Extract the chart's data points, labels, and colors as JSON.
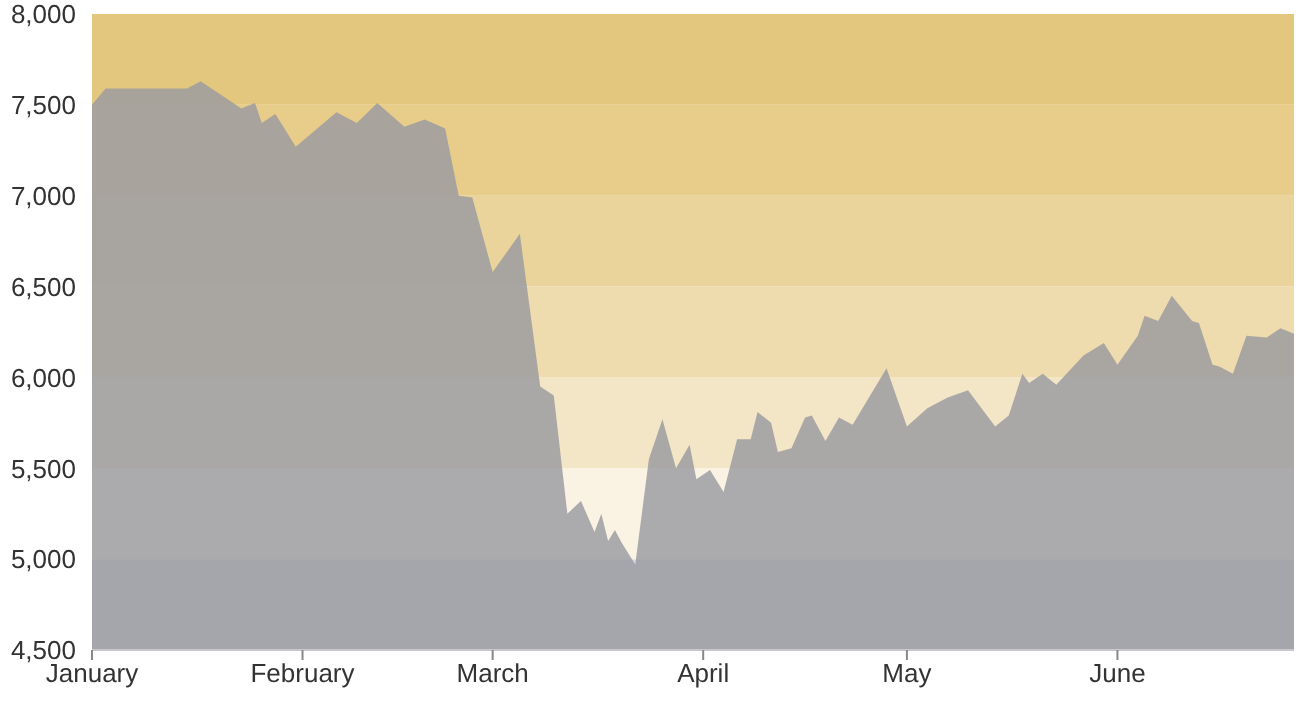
{
  "chart_data": {
    "type": "area",
    "x": [
      "--01-01",
      "--01-03",
      "--01-15",
      "--01-17",
      "--01-23",
      "--01-25",
      "--01-26",
      "--01-28",
      "--01-31",
      "--02-06",
      "--02-09",
      "--02-12",
      "--02-16",
      "--02-19",
      "--02-22",
      "--02-24",
      "--02-26",
      "--03-01",
      "--03-05",
      "--03-08",
      "--03-10",
      "--03-12",
      "--03-14",
      "--03-16",
      "--03-17",
      "--03-18",
      "--03-19",
      "--03-20",
      "--03-22",
      "--03-24",
      "--03-26",
      "--03-28",
      "--03-30",
      "--03-31",
      "--04-02",
      "--04-04",
      "--04-06",
      "--04-08",
      "--04-09",
      "--04-11",
      "--04-12",
      "--04-14",
      "--04-16",
      "--04-17",
      "--04-19",
      "--04-21",
      "--04-23",
      "--04-28",
      "--05-01",
      "--05-04",
      "--05-07",
      "--05-10",
      "--05-14",
      "--05-16",
      "--05-18",
      "--05-19",
      "--05-21",
      "--05-23",
      "--05-27",
      "--05-30",
      "--06-01",
      "--06-04",
      "--06-05",
      "--06-07",
      "--06-09",
      "--06-12",
      "--06-13",
      "--06-15",
      "--06-16",
      "--06-18",
      "--06-20",
      "--06-23",
      "--06-25",
      "--06-27"
    ],
    "series": [
      {
        "color": "#9a9aa0",
        "values": [
          7500,
          7590,
          7590,
          7630,
          7480,
          7510,
          7400,
          7450,
          7270,
          7460,
          7400,
          7510,
          7380,
          7420,
          7370,
          7000,
          6990,
          6580,
          6790,
          5950,
          5900,
          5250,
          5320,
          5150,
          5250,
          5100,
          5160,
          5090,
          4970,
          5550,
          5770,
          5500,
          5630,
          5440,
          5490,
          5370,
          5660,
          5660,
          5810,
          5750,
          5590,
          5610,
          5780,
          5790,
          5650,
          5780,
          5740,
          6050,
          5730,
          5830,
          5890,
          5930,
          5730,
          5790,
          6020,
          5970,
          6020,
          5960,
          6120,
          6190,
          6070,
          6230,
          6340,
          6310,
          6450,
          6310,
          6300,
          6070,
          6060,
          6020,
          6230,
          6220,
          6270,
          6240
        ]
      }
    ],
    "xlim": [
      "--01-01",
      "--06-27"
    ],
    "xticks": [
      {
        "value": "--01-01",
        "label": "January"
      },
      {
        "value": "--02-01",
        "label": "February"
      },
      {
        "value": "--03-01",
        "label": "March"
      },
      {
        "value": "--04-01",
        "label": "April"
      },
      {
        "value": "--05-01",
        "label": "May"
      },
      {
        "value": "--06-01",
        "label": "June"
      }
    ],
    "ylim": [
      4500,
      8000
    ],
    "yticks": [
      {
        "value": 4500,
        "label": "4,500"
      },
      {
        "value": 5000,
        "label": "5,000"
      },
      {
        "value": 5500,
        "label": "5,500"
      },
      {
        "value": 6000,
        "label": "6,000"
      },
      {
        "value": 6500,
        "label": "6,500"
      },
      {
        "value": 7000,
        "label": "7,000"
      },
      {
        "value": 7500,
        "label": "7,500"
      },
      {
        "value": 8000,
        "label": "8,000"
      }
    ],
    "bands": [
      {
        "axis": "y",
        "from": 4500,
        "to": 5000,
        "color": "#d6d9e2"
      },
      {
        "axis": "y",
        "from": 5000,
        "to": 5500,
        "color": "#faf3e3"
      },
      {
        "axis": "y",
        "from": 5500,
        "to": 6000,
        "color": "#f3e6c7"
      },
      {
        "axis": "y",
        "from": 6000,
        "to": 6500,
        "color": "#eedcae"
      },
      {
        "axis": "y",
        "from": 6500,
        "to": 7000,
        "color": "#ead49b"
      },
      {
        "axis": "y",
        "from": 7000,
        "to": 7500,
        "color": "#e7cc8a"
      },
      {
        "axis": "y",
        "from": 7500,
        "to": 8000,
        "color": "#e4c77e"
      }
    ],
    "grid": false,
    "legend": false
  }
}
